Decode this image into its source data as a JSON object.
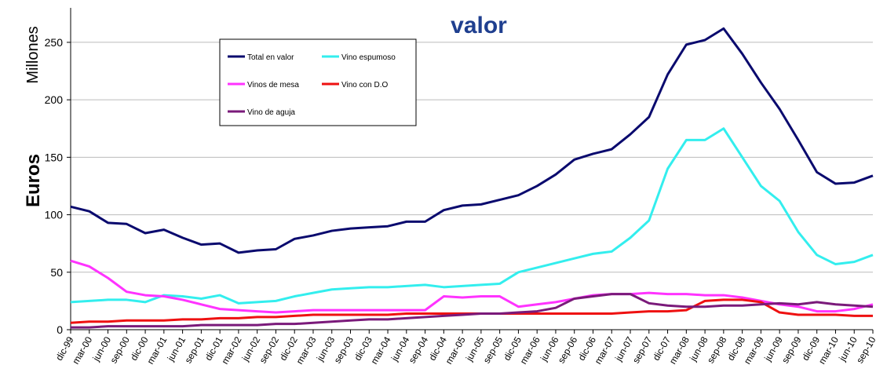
{
  "chart_data": {
    "type": "line",
    "title": "valor",
    "y_label_top": "Millones",
    "y_label": "Euros",
    "categories": [
      "dic-99",
      "mar-00",
      "jun-00",
      "sep-00",
      "dic-00",
      "mar-01",
      "jun-01",
      "sep-01",
      "dic-01",
      "mar-02",
      "jun-02",
      "sep-02",
      "dic-02",
      "mar-03",
      "jun-03",
      "sep-03",
      "dic-03",
      "mar-04",
      "jun-04",
      "sep-04",
      "dic-04",
      "mar-05",
      "jun-05",
      "sep-05",
      "dic-05",
      "mar-06",
      "jun-06",
      "sep-06",
      "dic-06",
      "mar-07",
      "jun-07",
      "sep-07",
      "dic-07",
      "mar-08",
      "jun-08",
      "sep-08",
      "dic-08",
      "mar-09",
      "jun-09",
      "sep-09",
      "dic-09",
      "mar-10",
      "jun-10",
      "sep-10"
    ],
    "series": [
      {
        "name": "Total en valor",
        "color": "#0a0a6e",
        "values": [
          107,
          103,
          93,
          92,
          84,
          87,
          80,
          74,
          75,
          67,
          69,
          70,
          79,
          82,
          86,
          88,
          89,
          90,
          94,
          94,
          104,
          108,
          109,
          113,
          117,
          125,
          135,
          148,
          153,
          157,
          170,
          185,
          222,
          248,
          252,
          262,
          240,
          215,
          192,
          165,
          137,
          127,
          128,
          134
        ]
      },
      {
        "name": "Vino espumoso",
        "color": "#33eeee",
        "values": [
          24,
          25,
          26,
          26,
          24,
          30,
          29,
          27,
          30,
          23,
          24,
          25,
          29,
          32,
          35,
          36,
          37,
          37,
          38,
          39,
          37,
          38,
          39,
          40,
          50,
          54,
          58,
          62,
          66,
          68,
          80,
          95,
          140,
          165,
          165,
          175,
          150,
          125,
          112,
          85,
          65,
          57,
          59,
          65
        ]
      },
      {
        "name": "Vinos de mesa",
        "color": "#ff33ff",
        "values": [
          60,
          55,
          45,
          33,
          30,
          29,
          26,
          22,
          18,
          17,
          16,
          15,
          16,
          17,
          17,
          17,
          17,
          17,
          17,
          17,
          29,
          28,
          29,
          29,
          20,
          22,
          24,
          27,
          30,
          31,
          31,
          32,
          31,
          31,
          30,
          30,
          28,
          25,
          22,
          20,
          16,
          16,
          18,
          22
        ]
      },
      {
        "name": "Vino con D.O",
        "color": "#ee1111",
        "values": [
          6,
          7,
          7,
          8,
          8,
          8,
          9,
          9,
          10,
          10,
          11,
          11,
          12,
          13,
          13,
          13,
          13,
          13,
          14,
          14,
          14,
          14,
          14,
          14,
          14,
          14,
          14,
          14,
          14,
          14,
          15,
          16,
          16,
          17,
          25,
          26,
          26,
          24,
          15,
          13,
          13,
          13,
          12,
          12
        ]
      },
      {
        "name": "Vino de aguja",
        "color": "#7a1a7a",
        "values": [
          2,
          2,
          3,
          3,
          3,
          3,
          3,
          4,
          4,
          4,
          4,
          5,
          5,
          6,
          7,
          8,
          9,
          9,
          10,
          11,
          12,
          13,
          14,
          14,
          15,
          16,
          19,
          27,
          29,
          31,
          31,
          23,
          21,
          20,
          20,
          21,
          21,
          22,
          23,
          22,
          24,
          22,
          21,
          20
        ]
      }
    ],
    "ylim": [
      0,
      280
    ],
    "yticks": [
      0,
      50,
      100,
      150,
      200,
      250
    ],
    "grid": true
  }
}
